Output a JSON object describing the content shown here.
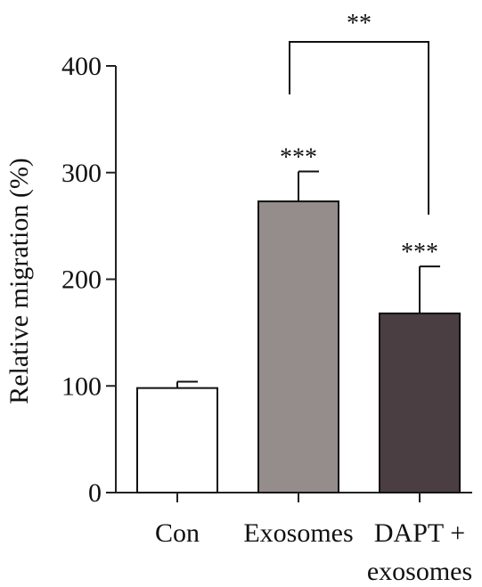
{
  "chart_data": {
    "type": "bar",
    "title": "",
    "xlabel": "",
    "ylabel": "Relative migration (%)",
    "ylim": [
      0,
      400
    ],
    "yticks": [
      0,
      100,
      200,
      300,
      400
    ],
    "grid": false,
    "categories": [
      {
        "label_lines": [
          "Con"
        ],
        "value": 98,
        "error": 6,
        "significance": "",
        "color": "#ffffff"
      },
      {
        "label_lines": [
          "Exosomes"
        ],
        "value": 273,
        "error": 28,
        "significance": "***",
        "color": "#948d8c"
      },
      {
        "label_lines": [
          "DAPT +",
          "exosomes"
        ],
        "value": 168,
        "error": 44,
        "significance": "***",
        "color": "#4a3e42"
      }
    ],
    "comparison": {
      "from": 1,
      "to": 2,
      "label": "**"
    }
  }
}
